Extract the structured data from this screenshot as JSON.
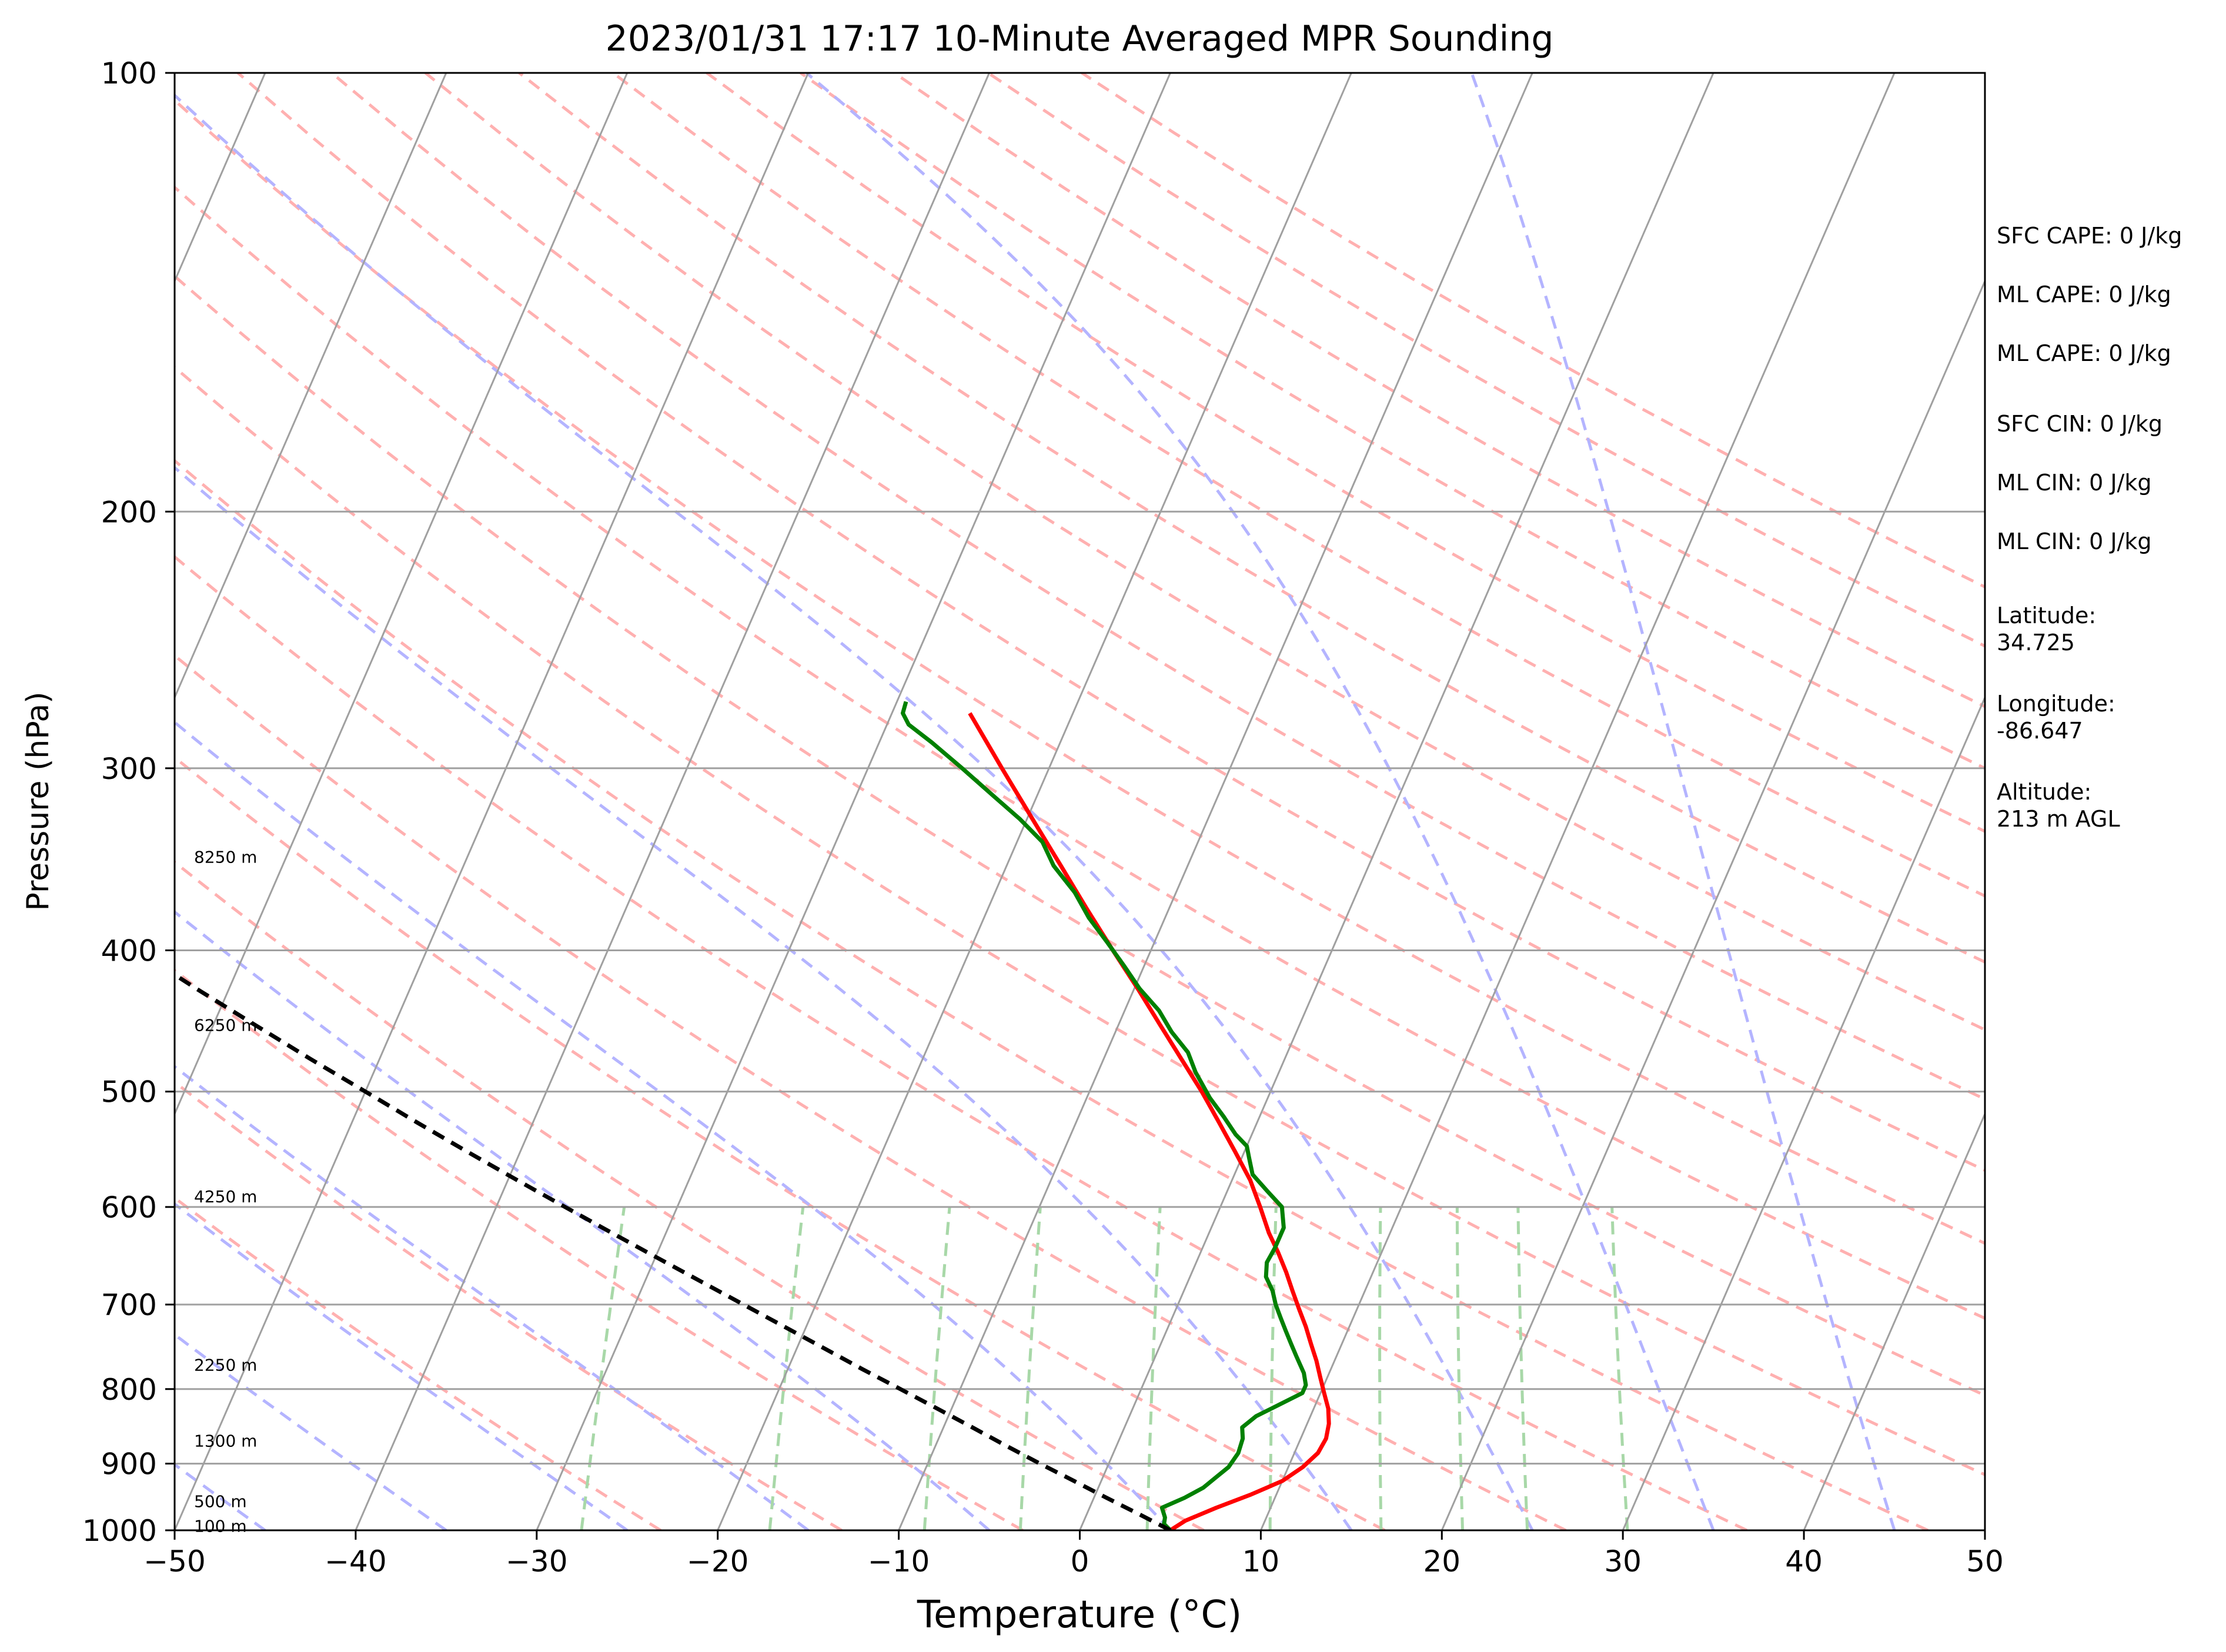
{
  "chart_data": {
    "type": "line",
    "subtype": "skew-t log-p",
    "title": "2023/01/31 17:17 10-Minute Averaged MPR Sounding",
    "xlabel": "Temperature (°C)",
    "ylabel": "Pressure (hPa)",
    "xlim": [
      -50,
      50
    ],
    "ylim": [
      1000,
      100
    ],
    "yscale": "log",
    "x_ticks": [
      -50,
      -40,
      -30,
      -20,
      -10,
      0,
      10,
      20,
      30,
      40,
      50
    ],
    "x_tick_labels": [
      "−50",
      "−40",
      "−30",
      "−20",
      "−10",
      "0",
      "10",
      "20",
      "30",
      "40",
      "50"
    ],
    "y_ticks": [
      100,
      200,
      300,
      400,
      500,
      600,
      700,
      800,
      900,
      1000
    ],
    "y_tick_labels": [
      "100",
      "200",
      "300",
      "400",
      "500",
      "600",
      "700",
      "800",
      "900",
      "1000"
    ],
    "grid": true,
    "colors": {
      "temperature": "#ff0000",
      "dewpoint": "#008000",
      "parcel": "#000000",
      "isotherm": "#a0a0a0",
      "dry_adiabat": "#ffb0b0",
      "moist_adiabat": "#b4b4ff",
      "mixing_ratio": "#a8d8a8"
    },
    "height_labels": [
      {
        "p": 345,
        "label": "8250 m"
      },
      {
        "p": 450,
        "label": "6250 m"
      },
      {
        "p": 590,
        "label": "4250 m"
      },
      {
        "p": 770,
        "label": "2250 m"
      },
      {
        "p": 868,
        "label": "1300 m"
      },
      {
        "p": 955,
        "label": "500 m"
      },
      {
        "p": 993,
        "label": "100 m"
      }
    ],
    "series": [
      {
        "key": "temperature",
        "p": [
          1000,
          985,
          965,
          945,
          925,
          905,
          885,
          865,
          845,
          825,
          805,
          785,
          765,
          745,
          725,
          705,
          685,
          665,
          645,
          625,
          600,
          575,
          550,
          525,
          500,
          475,
          450,
          425,
          400,
          375,
          350,
          325,
          300,
          275
        ],
        "t": [
          5.0,
          5.6,
          7.0,
          8.6,
          10.0,
          10.8,
          11.3,
          11.4,
          11.2,
          10.8,
          10.2,
          9.6,
          9.0,
          8.3,
          7.6,
          6.8,
          6.0,
          5.2,
          4.3,
          3.3,
          2.2,
          1.0,
          -0.5,
          -2.1,
          -3.8,
          -5.7,
          -7.7,
          -9.8,
          -12.1,
          -14.5,
          -17.0,
          -19.7,
          -22.6,
          -25.7
        ]
      },
      {
        "key": "dewpoint",
        "p": [
          1000,
          990,
          980,
          965,
          950,
          935,
          918,
          905,
          885,
          865,
          850,
          835,
          820,
          805,
          795,
          780,
          760,
          745,
          730,
          715,
          700,
          685,
          670,
          655,
          640,
          620,
          600,
          585,
          570,
          555,
          545,
          535,
          520,
          505,
          485,
          470,
          455,
          440,
          425,
          410,
          395,
          380,
          365,
          350,
          337,
          325,
          314,
          300,
          288,
          280,
          275,
          270
        ],
        "t": [
          5.0,
          4.5,
          4.4,
          4.0,
          5.0,
          5.8,
          6.3,
          6.7,
          6.9,
          6.8,
          6.5,
          7.0,
          8.0,
          9.0,
          9.0,
          8.6,
          7.8,
          7.2,
          6.6,
          6.0,
          5.4,
          4.9,
          4.2,
          3.9,
          4.0,
          4.0,
          3.4,
          2.2,
          1.0,
          0.4,
          0.0,
          -0.9,
          -2.0,
          -3.2,
          -4.6,
          -5.5,
          -6.9,
          -8.1,
          -9.7,
          -11.1,
          -12.6,
          -14.2,
          -15.6,
          -17.4,
          -18.6,
          -20.4,
          -22.3,
          -24.8,
          -27.1,
          -28.8,
          -29.4,
          -29.5
        ]
      },
      {
        "key": "parcel",
        "p": [
          1000,
          975,
          950,
          925,
          900,
          875,
          850,
          825,
          800,
          775,
          750,
          725,
          700,
          675,
          650,
          625,
          600,
          575,
          550,
          525,
          500,
          475,
          450,
          425,
          400,
          375,
          350,
          325,
          300,
          275,
          262
        ],
        "t": [
          5.0,
          2.9,
          0.7,
          -1.5,
          -3.8,
          -6.1,
          -8.4,
          -10.8,
          -13.3,
          -15.9,
          -18.5,
          -21.2,
          -24.0,
          -26.9,
          -29.9,
          -33.0,
          -36.2,
          -39.5,
          -42.9,
          -46.4,
          -50.0,
          -53.8,
          -57.7,
          -61.8,
          -66.0,
          -70.4,
          -75.0,
          -79.8,
          -84.9,
          -90.2,
          -93.1
        ]
      }
    ]
  },
  "side_panel": [
    {
      "label": "SFC CAPE:",
      "value": "0 J/kg"
    },
    {
      "label": "ML CAPE:",
      "value": "0 J/kg"
    },
    {
      "label": "ML CAPE:",
      "value": "0 J/kg"
    },
    {
      "label": "SFC CIN:",
      "value": "0 J/kg"
    },
    {
      "label": "ML CIN:",
      "value": "0 J/kg"
    },
    {
      "label": "ML CIN:",
      "value": "0 J/kg"
    },
    {
      "label": "Latitude:",
      "value": "34.725"
    },
    {
      "label": "Longitude:",
      "value": "-86.647"
    },
    {
      "label": "Altitude:",
      "value": "213 m AGL"
    }
  ]
}
